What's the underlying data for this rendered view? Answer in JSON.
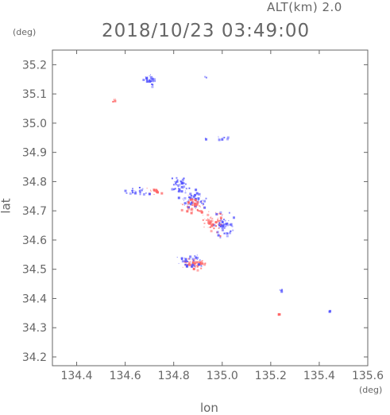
{
  "header": {
    "altitude_label": "ALT(km) 2.0",
    "datetime": "2018/10/23 03:49:00"
  },
  "axes": {
    "y_unit": "(deg)",
    "x_unit": "(deg)",
    "y_label": "lat",
    "x_label": "lon"
  },
  "chart_data": {
    "type": "scatter",
    "xlabel": "lon",
    "ylabel": "lat",
    "xlim": [
      134.3,
      135.6
    ],
    "ylim": [
      34.17,
      35.25
    ],
    "x_ticks": [
      "134.4",
      "134.6",
      "134.8",
      "135.0",
      "135.2",
      "135.4",
      "135.6"
    ],
    "y_ticks": [
      "34.2",
      "34.3",
      "34.4",
      "34.5",
      "34.6",
      "34.7",
      "34.8",
      "34.9",
      "35.0",
      "35.1",
      "35.2"
    ],
    "colors": {
      "positive": "#ff6666",
      "negative": "#5555ff"
    },
    "clusters": [
      {
        "lon": 134.7,
        "lat": 35.15,
        "color": "negative",
        "n": 28,
        "sx": 0.025,
        "sy": 0.02
      },
      {
        "lon": 134.55,
        "lat": 35.08,
        "color": "positive",
        "n": 6,
        "sx": 0.008,
        "sy": 0.006
      },
      {
        "lon": 134.93,
        "lat": 35.16,
        "color": "negative",
        "n": 2,
        "sx": 0.004,
        "sy": 0.003
      },
      {
        "lon": 134.99,
        "lat": 34.95,
        "color": "negative",
        "n": 10,
        "sx": 0.03,
        "sy": 0.005
      },
      {
        "lon": 134.93,
        "lat": 34.95,
        "color": "negative",
        "n": 3,
        "sx": 0.003,
        "sy": 0.003
      },
      {
        "lon": 134.82,
        "lat": 34.79,
        "color": "negative",
        "n": 40,
        "sx": 0.03,
        "sy": 0.025
      },
      {
        "lon": 134.65,
        "lat": 34.77,
        "color": "negative",
        "n": 25,
        "sx": 0.04,
        "sy": 0.01
      },
      {
        "lon": 134.72,
        "lat": 34.77,
        "color": "positive",
        "n": 18,
        "sx": 0.03,
        "sy": 0.015
      },
      {
        "lon": 134.88,
        "lat": 34.74,
        "color": "negative",
        "n": 60,
        "sx": 0.05,
        "sy": 0.03
      },
      {
        "lon": 134.88,
        "lat": 34.72,
        "color": "positive",
        "n": 50,
        "sx": 0.05,
        "sy": 0.03
      },
      {
        "lon": 134.96,
        "lat": 34.66,
        "color": "positive",
        "n": 55,
        "sx": 0.04,
        "sy": 0.04
      },
      {
        "lon": 135.0,
        "lat": 34.65,
        "color": "negative",
        "n": 45,
        "sx": 0.04,
        "sy": 0.04
      },
      {
        "lon": 134.88,
        "lat": 34.52,
        "color": "positive",
        "n": 60,
        "sx": 0.045,
        "sy": 0.018
      },
      {
        "lon": 134.86,
        "lat": 34.53,
        "color": "negative",
        "n": 35,
        "sx": 0.05,
        "sy": 0.018
      },
      {
        "lon": 135.24,
        "lat": 34.43,
        "color": "negative",
        "n": 5,
        "sx": 0.005,
        "sy": 0.004
      },
      {
        "lon": 135.23,
        "lat": 34.35,
        "color": "positive",
        "n": 4,
        "sx": 0.003,
        "sy": 0.003
      },
      {
        "lon": 135.44,
        "lat": 34.36,
        "color": "negative",
        "n": 4,
        "sx": 0.004,
        "sy": 0.003
      }
    ]
  }
}
